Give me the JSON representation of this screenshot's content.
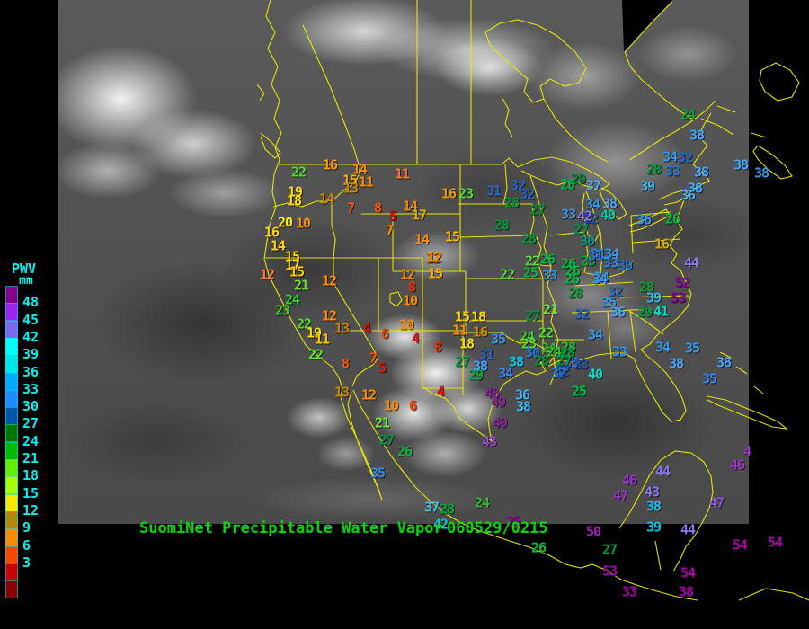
{
  "header": {
    "product": "SuomiNet Precipitable Water Vapor",
    "datetime": "060529/0215"
  },
  "legend": {
    "heading": "PWV",
    "unit": "mm",
    "text_color": "#00F2F2",
    "cells": [
      {
        "c": "#8B008B",
        "label": ""
      },
      {
        "c": "#A020F0",
        "label": "48"
      },
      {
        "c": "#7B68EE",
        "label": "45"
      },
      {
        "c": "#00FFFF",
        "label": "42"
      },
      {
        "c": "#00E6E6",
        "label": "39"
      },
      {
        "c": "#00AAFF",
        "label": "36"
      },
      {
        "c": "#1E8CFF",
        "label": "33"
      },
      {
        "c": "#0055AA",
        "label": "30"
      },
      {
        "c": "#007700",
        "label": "27"
      },
      {
        "c": "#00BB00",
        "label": "24"
      },
      {
        "c": "#66EE00",
        "label": "21"
      },
      {
        "c": "#AAFF00",
        "label": "18"
      },
      {
        "c": "#FFE600",
        "label": "15"
      },
      {
        "c": "#B8860B",
        "label": "12"
      },
      {
        "c": "#FF8C00",
        "label": "9"
      },
      {
        "c": "#FF4600",
        "label": "6"
      },
      {
        "c": "#CC0000",
        "label": "3"
      },
      {
        "c": "#880000",
        "label": ""
      }
    ]
  },
  "map": {
    "outline_color": "#ECEC00",
    "title_color": "#00DC00"
  },
  "stations": [
    [
      "22",
      332,
      192,
      "#55DD33"
    ],
    [
      "16",
      367,
      184,
      "#FF9900"
    ],
    [
      "14",
      400,
      189,
      "#FF8C00"
    ],
    [
      "11",
      447,
      194,
      "#FF7733"
    ],
    [
      "15",
      389,
      201,
      "#FFAA00"
    ],
    [
      "11",
      407,
      203,
      "#FF8C00"
    ],
    [
      "13",
      390,
      210,
      "#CC8800"
    ],
    [
      "19",
      328,
      214,
      "#FFDD00"
    ],
    [
      "18",
      327,
      224,
      "#FFDD00"
    ],
    [
      "14",
      363,
      222,
      "#CC8800"
    ],
    [
      "7",
      390,
      232,
      "#FF5500"
    ],
    [
      "8",
      420,
      232,
      "#FF5500"
    ],
    [
      "14",
      456,
      230,
      "#FF8C00"
    ],
    [
      "17",
      466,
      240,
      "#DDAA00"
    ],
    [
      "5",
      437,
      241,
      "#DD0000"
    ],
    [
      "20",
      317,
      248,
      "#FFEE00"
    ],
    [
      "10",
      337,
      249,
      "#FF8C00"
    ],
    [
      "16",
      302,
      259,
      "#FFD700"
    ],
    [
      "7",
      433,
      257,
      "#FF8C00"
    ],
    [
      "14",
      469,
      267,
      "#FF8C00"
    ],
    [
      "14",
      309,
      274,
      "#FFD700"
    ],
    [
      "15",
      325,
      286,
      "#FFD700"
    ],
    [
      "12",
      481,
      288,
      "#CC8800"
    ],
    [
      "17",
      325,
      296,
      "#FFD700"
    ],
    [
      "15",
      330,
      303,
      "#FFCC00"
    ],
    [
      "12",
      297,
      306,
      "#FF7744"
    ],
    [
      "21",
      335,
      318,
      "#66DD33"
    ],
    [
      "12",
      366,
      313,
      "#FF8C00"
    ],
    [
      "24",
      325,
      334,
      "#33CC33"
    ],
    [
      "23",
      314,
      346,
      "#44CC33"
    ],
    [
      "12",
      366,
      352,
      "#FF8C00"
    ],
    [
      "22",
      338,
      361,
      "#55DD33"
    ],
    [
      "13",
      380,
      366,
      "#CC8800"
    ],
    [
      "19",
      349,
      371,
      "#FFDD00"
    ],
    [
      "11",
      358,
      378,
      "#FFCC00"
    ],
    [
      "4",
      408,
      366,
      "#DD1100"
    ],
    [
      "6",
      428,
      372,
      "#EE4400"
    ],
    [
      "10",
      452,
      362,
      "#FF8C00"
    ],
    [
      "4",
      462,
      377,
      "#DD1100"
    ],
    [
      "22",
      351,
      395,
      "#55EE33"
    ],
    [
      "8",
      384,
      405,
      "#FF5500"
    ],
    [
      "7",
      415,
      399,
      "#FF5500"
    ],
    [
      "5",
      425,
      410,
      "#DD1100"
    ],
    [
      "8",
      487,
      387,
      "#EE3300"
    ],
    [
      "12",
      453,
      306,
      "#FF8C00"
    ],
    [
      "8",
      458,
      320,
      "#EE3300"
    ],
    [
      "10",
      456,
      335,
      "#FF8C00"
    ],
    [
      "13",
      380,
      437,
      "#CC8800"
    ],
    [
      "12",
      410,
      440,
      "#FF8C00"
    ],
    [
      "10",
      435,
      452,
      "#FF8C00"
    ],
    [
      "6",
      459,
      452,
      "#EE4400"
    ],
    [
      "16",
      499,
      216,
      "#EE9900"
    ],
    [
      "23",
      518,
      216,
      "#55DD33"
    ],
    [
      "31",
      549,
      213,
      "#3366CC"
    ],
    [
      "32",
      576,
      207,
      "#2266CC"
    ],
    [
      "32",
      586,
      217,
      "#2266CC"
    ],
    [
      "28",
      569,
      226,
      "#009933"
    ],
    [
      "27",
      598,
      234,
      "#009933"
    ],
    [
      "28",
      558,
      251,
      "#009933"
    ],
    [
      "28",
      588,
      266,
      "#009933"
    ],
    [
      "15",
      503,
      264,
      "#FFBB00"
    ],
    [
      "12",
      483,
      287,
      "#FF8C00"
    ],
    [
      "15",
      484,
      305,
      "#FFAA00"
    ],
    [
      "29",
      643,
      200,
      "#008833"
    ],
    [
      "26",
      631,
      206,
      "#00BB44"
    ],
    [
      "37",
      660,
      207,
      "#44AAFF"
    ],
    [
      "34",
      659,
      228,
      "#3399EE"
    ],
    [
      "38",
      678,
      227,
      "#44AAFF"
    ],
    [
      "33",
      632,
      239,
      "#3399EE"
    ],
    [
      "32",
      657,
      244,
      "#2255BB"
    ],
    [
      "40",
      676,
      240,
      "#00CCAA"
    ],
    [
      "27",
      646,
      256,
      "#009944"
    ],
    [
      "30",
      653,
      269,
      "#009988"
    ],
    [
      "31",
      665,
      283,
      "#3388DD"
    ],
    [
      "34",
      680,
      283,
      "#3399EE"
    ],
    [
      "29",
      654,
      291,
      "#00AA44"
    ],
    [
      "26",
      632,
      294,
      "#00BB44"
    ],
    [
      "26",
      637,
      302,
      "#00BB44"
    ],
    [
      "22",
      592,
      291,
      "#55DD33"
    ],
    [
      "26",
      609,
      289,
      "#00BB44"
    ],
    [
      "22",
      564,
      306,
      "#55DD33"
    ],
    [
      "25",
      590,
      304,
      "#00BB44"
    ],
    [
      "33",
      611,
      307,
      "#3399EE"
    ],
    [
      "26",
      636,
      311,
      "#00BB44"
    ],
    [
      "34",
      669,
      309,
      "#3399EE"
    ],
    [
      "42",
      650,
      241,
      "#8877EE"
    ],
    [
      "24",
      765,
      128,
      "#00AA33"
    ],
    [
      "38",
      775,
      151,
      "#44AAFF"
    ],
    [
      "34",
      745,
      175,
      "#3399EE"
    ],
    [
      "32",
      762,
      176,
      "#2266CC"
    ],
    [
      "28",
      727,
      189,
      "#009933"
    ],
    [
      "33",
      748,
      191,
      "#2277DD"
    ],
    [
      "38",
      780,
      192,
      "#44AAFF"
    ],
    [
      "39",
      720,
      208,
      "#44BBFF"
    ],
    [
      "38",
      773,
      210,
      "#44AAFF"
    ],
    [
      "36",
      765,
      218,
      "#44AAFF"
    ],
    [
      "36",
      716,
      245,
      "#3399EE"
    ],
    [
      "26",
      748,
      244,
      "#00BB44"
    ],
    [
      "16",
      736,
      272,
      "#DDAA00"
    ],
    [
      "38",
      824,
      184,
      "#44AAFF"
    ],
    [
      "38",
      847,
      193,
      "#3399EE"
    ],
    [
      "31",
      662,
      285,
      "#3377DD"
    ],
    [
      "33",
      679,
      293,
      "#3388EE"
    ],
    [
      "30",
      695,
      296,
      "#2277CC"
    ],
    [
      "34",
      667,
      311,
      "#3399EE"
    ],
    [
      "28",
      640,
      327,
      "#009933"
    ],
    [
      "52",
      759,
      315,
      "#880099"
    ],
    [
      "44",
      769,
      293,
      "#8877EE"
    ],
    [
      "28",
      719,
      320,
      "#00AA33"
    ],
    [
      "39",
      727,
      332,
      "#33BBFF"
    ],
    [
      "53",
      754,
      332,
      "#880099"
    ],
    [
      "32",
      684,
      325,
      "#2266CC"
    ],
    [
      "35",
      677,
      337,
      "#3399EE"
    ],
    [
      "36",
      687,
      348,
      "#44AAFF"
    ],
    [
      "32",
      647,
      350,
      "#2266CC"
    ],
    [
      "29",
      717,
      348,
      "#009944"
    ],
    [
      "41",
      735,
      347,
      "#00DDCC"
    ],
    [
      "34",
      662,
      373,
      "#3399EE"
    ],
    [
      "33",
      689,
      392,
      "#3399EE"
    ],
    [
      "34",
      737,
      387,
      "#3399EE"
    ],
    [
      "35",
      770,
      388,
      "#3399EE"
    ],
    [
      "38",
      752,
      405,
      "#44AAFF"
    ],
    [
      "38",
      805,
      404,
      "#44AAFF"
    ],
    [
      "35",
      789,
      422,
      "#3388EE"
    ],
    [
      "28",
      632,
      387,
      "#33BB33"
    ],
    [
      "27",
      628,
      395,
      "#009944"
    ],
    [
      "35",
      635,
      404,
      "#3377DD"
    ],
    [
      "32",
      625,
      413,
      "#2266CC"
    ],
    [
      "40",
      662,
      417,
      "#00DDCC"
    ],
    [
      "15",
      514,
      353,
      "#FFCC00"
    ],
    [
      "18",
      532,
      353,
      "#FFDD00"
    ],
    [
      "11",
      511,
      368,
      "#FF8C00"
    ],
    [
      "16",
      534,
      370,
      "#CC8800"
    ],
    [
      "18",
      519,
      383,
      "#FFDD00"
    ],
    [
      "35",
      554,
      378,
      "#3399EE"
    ],
    [
      "27",
      592,
      352,
      "#009944"
    ],
    [
      "21",
      612,
      345,
      "#66EE33"
    ],
    [
      "24",
      586,
      375,
      "#44CC33"
    ],
    [
      "22",
      607,
      371,
      "#55DD33"
    ],
    [
      "23",
      588,
      383,
      "#55DD33"
    ],
    [
      "24",
      610,
      388,
      "#33BB33"
    ],
    [
      "24",
      616,
      392,
      "#33BB33"
    ],
    [
      "30",
      592,
      393,
      "#2277DD"
    ],
    [
      "28",
      602,
      402,
      "#009933"
    ],
    [
      "28",
      631,
      393,
      "#00AA33"
    ],
    [
      "27",
      627,
      402,
      "#009944"
    ],
    [
      "27",
      514,
      403,
      "#009944"
    ],
    [
      "31",
      541,
      395,
      "#2266CC"
    ],
    [
      "38",
      534,
      408,
      "#44AAFF"
    ],
    [
      "38",
      574,
      403,
      "#00CCEE"
    ],
    [
      "29",
      529,
      418,
      "#00AA44"
    ],
    [
      "34",
      562,
      416,
      "#3388EE"
    ],
    [
      "32",
      621,
      416,
      "#2277DD"
    ],
    [
      "33",
      646,
      406,
      "#2255BB"
    ],
    [
      "4",
      490,
      436,
      "#DD1100"
    ],
    [
      "48",
      547,
      438,
      "#882299"
    ],
    [
      "49",
      554,
      448,
      "#882299"
    ],
    [
      "36",
      581,
      440,
      "#33BBFF"
    ],
    [
      "38",
      582,
      453,
      "#33BBFF"
    ],
    [
      "49",
      556,
      471,
      "#882299"
    ],
    [
      "25",
      644,
      436,
      "#00BB44"
    ],
    [
      "43",
      544,
      492,
      "#9944CC"
    ],
    [
      "21",
      425,
      471,
      "#66EE33"
    ],
    [
      "27",
      430,
      490,
      "#009944"
    ],
    [
      "26",
      450,
      503,
      "#00BB44"
    ],
    [
      "35",
      420,
      527,
      "#3388EE"
    ],
    [
      "37",
      480,
      565,
      "#33CCEE"
    ],
    [
      "28",
      497,
      567,
      "#00AA33"
    ],
    [
      "24",
      536,
      560,
      "#33BB33"
    ],
    [
      "42",
      490,
      584,
      "#00CCDD"
    ],
    [
      "25",
      571,
      581,
      "#880088"
    ],
    [
      "26",
      599,
      610,
      "#00BB44"
    ],
    [
      "50",
      660,
      592,
      "#A020C0"
    ],
    [
      "27",
      678,
      612,
      "#009944"
    ],
    [
      "53",
      678,
      636,
      "#AA00AA"
    ],
    [
      "44",
      737,
      525,
      "#8877EE"
    ],
    [
      "46",
      700,
      535,
      "#9933CC"
    ],
    [
      "47",
      690,
      552,
      "#9933CC"
    ],
    [
      "43",
      725,
      548,
      "#8877EE"
    ],
    [
      "38",
      727,
      564,
      "#00CCEE"
    ],
    [
      "39",
      727,
      587,
      "#00CCEE"
    ],
    [
      "44",
      765,
      590,
      "#8877EE"
    ],
    [
      "46",
      820,
      518,
      "#9933CC"
    ],
    [
      "4",
      831,
      503,
      "#9933CC"
    ],
    [
      "47",
      797,
      560,
      "#8855DD"
    ],
    [
      "54",
      823,
      607,
      "#AA00AA"
    ],
    [
      "54",
      765,
      638,
      "#AA00AA"
    ],
    [
      "54",
      862,
      604,
      "#AA00AA"
    ],
    [
      "33",
      700,
      659,
      "#AA00AA"
    ],
    [
      "38",
      763,
      659,
      "#AA00AA"
    ]
  ]
}
